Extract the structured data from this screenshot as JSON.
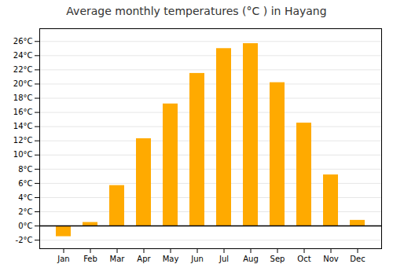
{
  "chart_data": {
    "type": "bar",
    "title": "Average monthly temperatures (°C ) in Hayang",
    "categories": [
      "Jan",
      "Feb",
      "Mar",
      "Apr",
      "May",
      "Jun",
      "Jul",
      "Aug",
      "Sep",
      "Oct",
      "Nov",
      "Dec"
    ],
    "values": [
      -1.5,
      0.5,
      5.7,
      12.3,
      17.2,
      21.5,
      25.0,
      25.7,
      20.2,
      14.5,
      7.2,
      0.8
    ],
    "color": "#FFAA00",
    "ylim": [
      -3.2,
      27.8
    ],
    "yticks": [
      {
        "value": -2,
        "label": "-2°C"
      },
      {
        "value": 0,
        "label": "0°C"
      },
      {
        "value": 2,
        "label": "2°C"
      },
      {
        "value": 4,
        "label": "4°C"
      },
      {
        "value": 6,
        "label": "6°C"
      },
      {
        "value": 8,
        "label": "8°C"
      },
      {
        "value": 10,
        "label": "10°C"
      },
      {
        "value": 12,
        "label": "12°C"
      },
      {
        "value": 14,
        "label": "14°C"
      },
      {
        "value": 16,
        "label": "16°C"
      },
      {
        "value": 18,
        "label": "18°C"
      },
      {
        "value": 20,
        "label": "20°C"
      },
      {
        "value": 22,
        "label": "22°C"
      },
      {
        "value": 24,
        "label": "24°C"
      },
      {
        "value": 26,
        "label": "26°C"
      }
    ],
    "grid": true
  }
}
